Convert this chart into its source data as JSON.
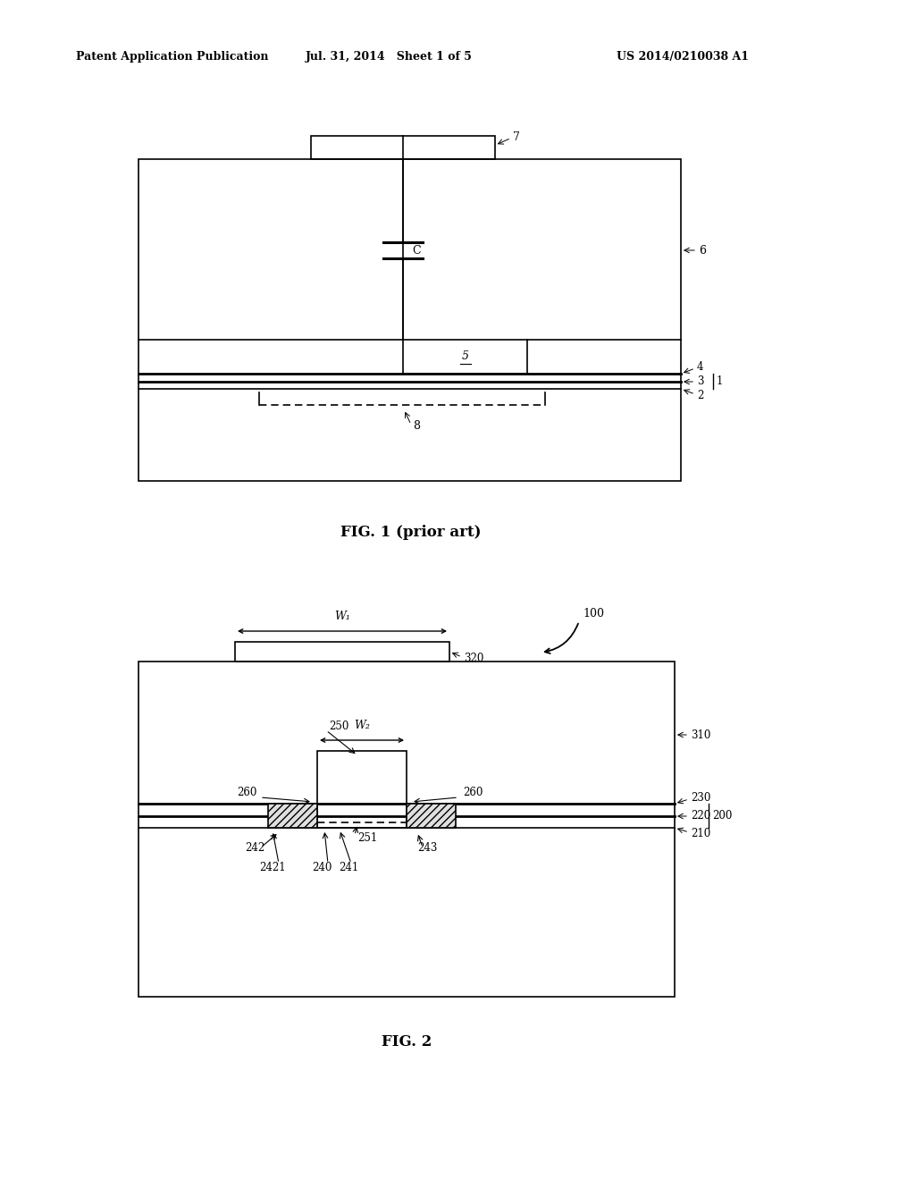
{
  "bg_color": "#ffffff",
  "header_left": "Patent Application Publication",
  "header_mid": "Jul. 31, 2014   Sheet 1 of 5",
  "header_right": "US 2014/0210038 A1",
  "fig1_caption": "FIG. 1 (prior art)",
  "fig2_caption": "FIG. 2",
  "line_color": "#000000",
  "lw": 1.2,
  "tlw": 2.0
}
